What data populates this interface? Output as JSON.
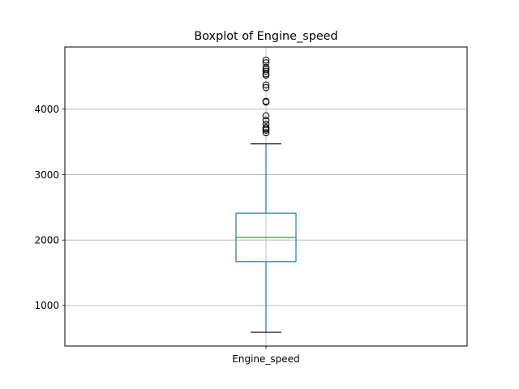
{
  "chart_data": {
    "type": "box",
    "title": "Boxplot of Engine_speed",
    "xlabel": "",
    "ylabel": "",
    "categories": [
      "Engine_speed"
    ],
    "ylim": [
      380,
      4950
    ],
    "yticks": [
      1000,
      2000,
      3000,
      4000
    ],
    "grid": true,
    "series": [
      {
        "whisker_low": 590,
        "q1": 1670,
        "median": 2040,
        "q3": 2410,
        "whisker_high": 3470,
        "outliers": [
          3640,
          3680,
          3700,
          3720,
          3770,
          3830,
          3900,
          4110,
          4120,
          4330,
          4370,
          4520,
          4540,
          4580,
          4610,
          4640,
          4710,
          4750
        ]
      }
    ],
    "colors": {
      "box": "#1f77b4",
      "whisker": "#1f77b4",
      "cap": "#000000",
      "median": "#2ca02c",
      "outlier": "#000000",
      "grid": "#b0b0b0",
      "frame": "#000000"
    }
  }
}
